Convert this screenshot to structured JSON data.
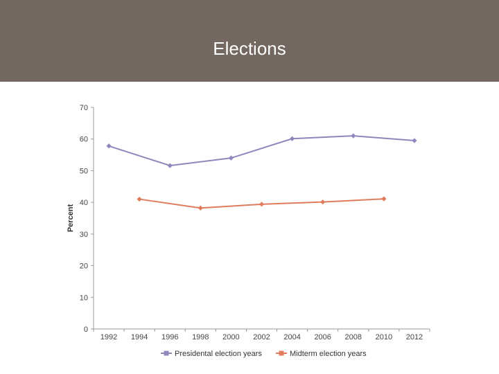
{
  "header": {
    "title": "Elections"
  },
  "chart_data": {
    "type": "line",
    "title": "",
    "xlabel": "",
    "ylabel": "Percent",
    "ylim": [
      0,
      70
    ],
    "yticks": [
      0,
      10,
      20,
      30,
      40,
      50,
      60,
      70
    ],
    "categories": [
      "1992",
      "1994",
      "1996",
      "1998",
      "2000",
      "2002",
      "2004",
      "2006",
      "2008",
      "2010",
      "2012"
    ],
    "series": [
      {
        "name": "Presidental election years",
        "color": "#8c88bd",
        "x": [
          "1992",
          "1996",
          "2000",
          "2004",
          "2008",
          "2012"
        ],
        "values": [
          57.8,
          51.6,
          54.0,
          60.1,
          61.0,
          59.5
        ]
      },
      {
        "name": "Midterm election years",
        "color": "#e07b5c",
        "x": [
          "1994",
          "1998",
          "2002",
          "2006",
          "2010"
        ],
        "values": [
          41.0,
          38.2,
          39.4,
          40.1,
          41.1
        ]
      }
    ],
    "legend_position": "bottom",
    "grid": false
  }
}
